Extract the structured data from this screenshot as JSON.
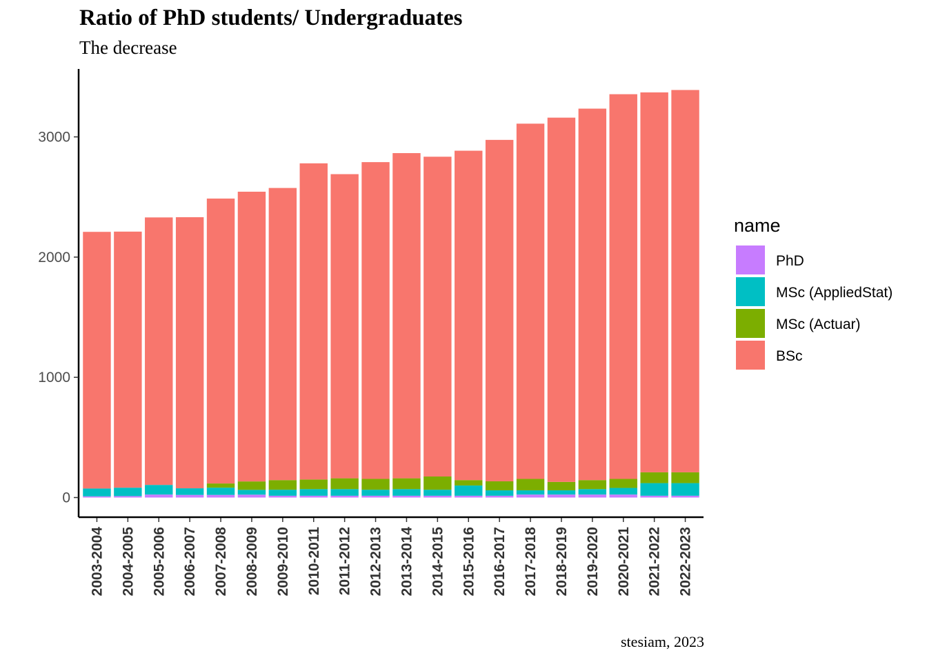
{
  "chart_data": {
    "type": "bar",
    "stacked": true,
    "title": "Ratio of PhD students/ Undergraduates",
    "subtitle": "The decrease",
    "caption": "stesiam, 2023",
    "xlabel": "",
    "ylabel": "",
    "ylim": [
      0,
      3500
    ],
    "yticks": [
      0,
      1000,
      2000,
      3000
    ],
    "grid": false,
    "legend": {
      "title": "name",
      "position": "right"
    },
    "categories": [
      "2003-2004",
      "2004-2005",
      "2005-2006",
      "2006-2007",
      "2007-2008",
      "2008-2009",
      "2009-2010",
      "2010-2011",
      "2011-2012",
      "2012-2013",
      "2013-2014",
      "2014-2015",
      "2015-2016",
      "2016-2017",
      "2017-2018",
      "2018-2019",
      "2019-2020",
      "2020-2021",
      "2021-2022",
      "2022-2023"
    ],
    "series": [
      {
        "name": "PhD",
        "color": "#C77CFF",
        "values": [
          10,
          12,
          25,
          22,
          22,
          24,
          15,
          15,
          15,
          15,
          15,
          15,
          15,
          15,
          25,
          25,
          25,
          25,
          15,
          15
        ]
      },
      {
        "name": "MSc (AppliedStat)",
        "color": "#00BFC4",
        "values": [
          65,
          70,
          80,
          55,
          60,
          40,
          50,
          55,
          55,
          50,
          55,
          50,
          85,
          45,
          35,
          35,
          45,
          55,
          105,
          105
        ]
      },
      {
        "name": "MSc (Actuar)",
        "color": "#7CAE00",
        "values": [
          0,
          0,
          0,
          0,
          35,
          70,
          80,
          80,
          90,
          90,
          90,
          110,
          45,
          75,
          95,
          70,
          75,
          75,
          90,
          90
        ]
      },
      {
        "name": "BSc",
        "color": "#F8766D",
        "values": [
          2135,
          2130,
          2225,
          2255,
          2370,
          2410,
          2430,
          2630,
          2530,
          2635,
          2705,
          2660,
          2740,
          2840,
          2955,
          3030,
          3090,
          3200,
          3160,
          3180
        ]
      }
    ]
  }
}
